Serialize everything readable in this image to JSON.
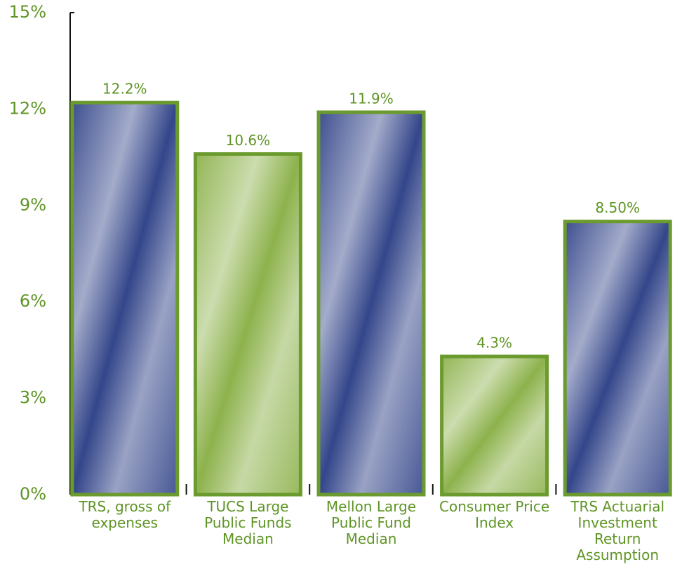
{
  "chart_data": {
    "type": "bar",
    "categories": [
      "TRS, gross of expenses",
      "TUCS Large Public Funds Median",
      "Mellon Large Public Fund Median",
      "Consumer Price Index",
      "TRS Actuarial Investment Return Assumption"
    ],
    "values": [
      12.2,
      10.6,
      11.9,
      4.3,
      8.5
    ],
    "value_labels": [
      "12.2%",
      "10.6%",
      "11.9%",
      "4.3%",
      "8.50%"
    ],
    "colors": [
      "#34468a",
      "#8db24c",
      "#34468a",
      "#8db24c",
      "#34468a"
    ],
    "outline_color": "#6b9a2e",
    "ylim": [
      0,
      15
    ],
    "yticks": [
      {
        "value": 0,
        "label": "0%"
      },
      {
        "value": 3,
        "label": "3%"
      },
      {
        "value": 6,
        "label": "6%"
      },
      {
        "value": 9,
        "label": "9%"
      },
      {
        "value": 12,
        "label": "12%"
      },
      {
        "value": 15,
        "label": "15%"
      }
    ],
    "grid": false
  }
}
